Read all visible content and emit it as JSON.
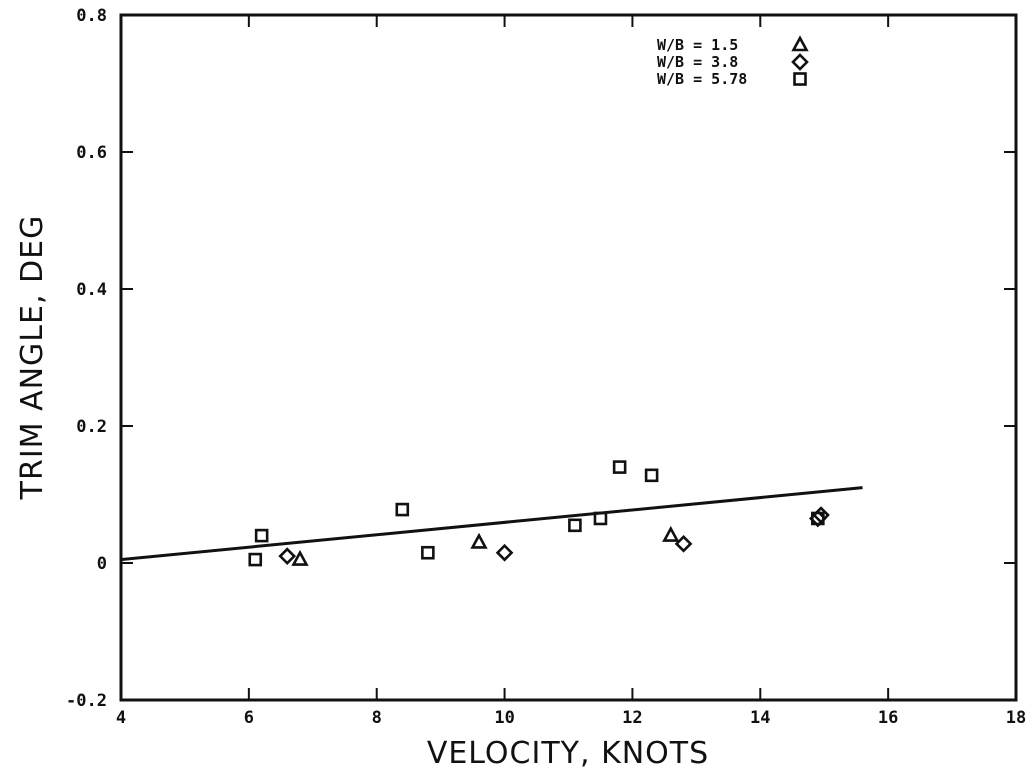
{
  "chart_data": {
    "type": "scatter",
    "xlabel": "VELOCITY, KNOTS",
    "ylabel": "TRIM ANGLE, DEG",
    "xlim": [
      4,
      18
    ],
    "ylim": [
      -0.2,
      0.8
    ],
    "x_ticks": [
      4,
      6,
      8,
      10,
      12,
      14,
      16,
      18
    ],
    "x_tick_labels": [
      "4",
      "6",
      "8",
      "10",
      "12",
      "14",
      "16",
      "18"
    ],
    "y_ticks": [
      -0.2,
      0,
      0.2,
      0.4,
      0.6,
      0.8
    ],
    "y_tick_labels": [
      "-0.2",
      "0",
      "0.2",
      "0.4",
      "0.6",
      "0.8"
    ],
    "grid": false,
    "legend_position": "top-right",
    "series": [
      {
        "name": "W/B = 1.5",
        "marker": "triangle",
        "points": [
          [
            6.8,
            0.005
          ],
          [
            9.6,
            0.03
          ],
          [
            12.6,
            0.04
          ]
        ]
      },
      {
        "name": "W/B = 3.8",
        "marker": "diamond",
        "points": [
          [
            6.6,
            0.01
          ],
          [
            10.0,
            0.015
          ],
          [
            12.8,
            0.028
          ],
          [
            14.9,
            0.065
          ],
          [
            14.95,
            0.07
          ]
        ]
      },
      {
        "name": "W/B = 5.78",
        "marker": "square",
        "points": [
          [
            6.1,
            0.005
          ],
          [
            6.2,
            0.04
          ],
          [
            8.4,
            0.078
          ],
          [
            8.8,
            0.015
          ],
          [
            11.1,
            0.055
          ],
          [
            11.5,
            0.065
          ],
          [
            11.8,
            0.14
          ],
          [
            12.3,
            0.128
          ],
          [
            14.9,
            0.065
          ]
        ]
      }
    ],
    "fit_line": {
      "points": [
        [
          4,
          0.005
        ],
        [
          15.6,
          0.11
        ]
      ]
    }
  },
  "colors": {
    "ink": "#111111",
    "background": "#ffffff"
  }
}
